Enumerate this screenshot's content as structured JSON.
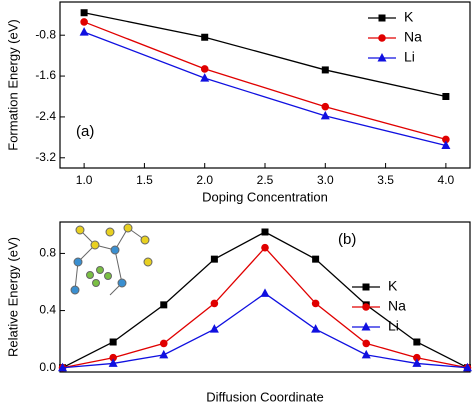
{
  "chart_data": [
    {
      "type": "line",
      "xlabel": "Doping Concentration",
      "ylabel": "Formation Energy (eV)",
      "annotation": "(a)",
      "x": [
        1.0,
        2.0,
        3.0,
        4.0
      ],
      "xlim": [
        0.8,
        4.2
      ],
      "xticks": [
        {
          "value": 1,
          "label": "1.0"
        },
        1.5,
        {
          "value": 2,
          "label": "2.0"
        },
        2.5,
        {
          "value": 3,
          "label": "3.0"
        },
        3.5,
        {
          "value": 4,
          "label": "4.0"
        }
      ],
      "ylim": [
        -3.4,
        -0.15
      ],
      "yticks": [
        -3.2,
        -2.4,
        -1.6,
        -0.8
      ],
      "legend": "upper right",
      "series": [
        {
          "name": "K",
          "color": "#000000",
          "marker": "square",
          "values": [
            -0.36,
            -0.84,
            -1.48,
            -2.0
          ]
        },
        {
          "name": "Na",
          "color": "#e00000",
          "marker": "circle",
          "values": [
            -0.54,
            -1.46,
            -2.2,
            -2.84
          ]
        },
        {
          "name": "Li",
          "color": "#1010e0",
          "marker": "triangle",
          "values": [
            -0.74,
            -1.64,
            -2.38,
            -2.96
          ]
        }
      ]
    },
    {
      "type": "line",
      "xlabel": "Diffusion Coordinate",
      "ylabel": "Relative Energy (eV)",
      "annotation": "(b)",
      "x": [
        0,
        1,
        2,
        3,
        4,
        5,
        6,
        7,
        8
      ],
      "xlim": [
        -0.05,
        8.05
      ],
      "ylim": [
        -0.03,
        1.02
      ],
      "yticks": [
        {
          "value": 0,
          "label": "0.0"
        },
        0.4,
        0.8
      ],
      "legend": "center right",
      "series": [
        {
          "name": "K",
          "color": "#000000",
          "marker": "square",
          "values": [
            0,
            0.18,
            0.44,
            0.76,
            0.95,
            0.76,
            0.44,
            0.18,
            0
          ]
        },
        {
          "name": "Na",
          "color": "#e00000",
          "marker": "circle",
          "values": [
            0,
            0.07,
            0.17,
            0.45,
            0.84,
            0.45,
            0.17,
            0.07,
            0
          ]
        },
        {
          "name": "Li",
          "color": "#1010e0",
          "marker": "triangle",
          "values": [
            0,
            0.03,
            0.09,
            0.27,
            0.52,
            0.27,
            0.09,
            0.03,
            0
          ]
        }
      ]
    }
  ]
}
